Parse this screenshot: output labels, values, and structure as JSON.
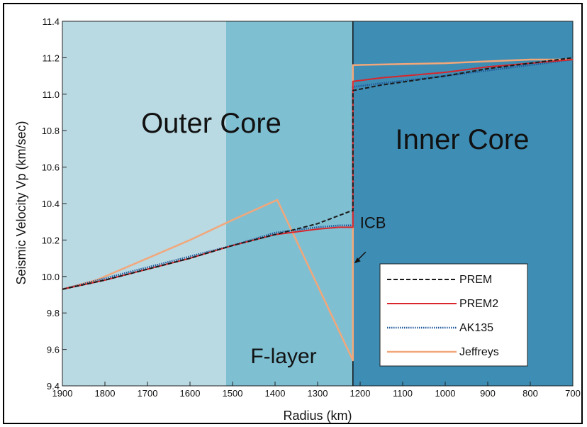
{
  "colors": {
    "outer_core_light": "#b9d9e3",
    "outer_core_mid": "#7fbfd2",
    "inner_core": "#3e8db4",
    "prem": "#1a1a1a",
    "prem2": "#d8262c",
    "ak135": "#1f5a9c",
    "jeffreys": "#f2a77a"
  },
  "chart_data": {
    "type": "line",
    "title": "",
    "xlabel": "Radius  (km)",
    "ylabel": "Seismic Velocity Vp  (km/sec)",
    "xlim": [
      1900,
      700
    ],
    "ylim": [
      9.4,
      11.4
    ],
    "x_reversed": true,
    "xticks": [
      1900,
      1800,
      1700,
      1600,
      1500,
      1400,
      1300,
      1200,
      1100,
      1000,
      900,
      800,
      700
    ],
    "yticks": [
      "9.4",
      "9.6",
      "9.8",
      "10.0",
      "10.2",
      "10.4",
      "10.6",
      "10.8",
      "11.0",
      "11.2",
      "11.4"
    ],
    "grid": false,
    "legend_position": "lower-right",
    "regions": [
      {
        "label": "Outer Core",
        "x_from": 1900,
        "x_to": 1515
      },
      {
        "label": "F-layer",
        "x_from": 1515,
        "x_to": 1217
      },
      {
        "label": "Inner Core",
        "x_from": 1217,
        "x_to": 700
      }
    ],
    "region_labels": {
      "outer_core": "Outer Core",
      "f_layer": "F-layer",
      "inner_core": "Inner Core"
    },
    "annotations": [
      {
        "text": "ICB",
        "x": 1217,
        "y": 10.22
      }
    ],
    "series": [
      {
        "name": "PREM",
        "style": "dashed",
        "x": [
          1900,
          1800,
          1700,
          1600,
          1500,
          1400,
          1300,
          1221,
          1217,
          1217,
          1150,
          1000,
          900,
          800,
          700
        ],
        "y": [
          9.93,
          9.98,
          10.04,
          10.1,
          10.17,
          10.23,
          10.29,
          10.36,
          10.36,
          11.02,
          11.05,
          11.1,
          11.14,
          11.17,
          11.2
        ]
      },
      {
        "name": "PREM2",
        "style": "solid",
        "x": [
          1900,
          1800,
          1700,
          1600,
          1500,
          1400,
          1300,
          1250,
          1220,
          1217,
          1217,
          1150,
          1000,
          900,
          800,
          700
        ],
        "y": [
          9.93,
          9.98,
          10.04,
          10.1,
          10.17,
          10.23,
          10.26,
          10.27,
          10.27,
          10.27,
          11.07,
          11.09,
          11.12,
          11.15,
          11.17,
          11.19
        ]
      },
      {
        "name": "AK135",
        "style": "dotted",
        "x": [
          1900,
          1800,
          1700,
          1600,
          1500,
          1400,
          1300,
          1250,
          1217,
          1217,
          1150,
          1000,
          900,
          800,
          700
        ],
        "y": [
          9.93,
          9.99,
          10.05,
          10.11,
          10.17,
          10.24,
          10.27,
          10.28,
          10.28,
          11.04,
          11.06,
          11.1,
          11.13,
          11.16,
          11.19
        ]
      },
      {
        "name": "Jeffreys",
        "style": "solid",
        "x": [
          1900,
          1820,
          1700,
          1600,
          1500,
          1395,
          1217,
          1217,
          1000,
          900,
          800,
          700
        ],
        "y": [
          9.93,
          9.98,
          10.1,
          10.2,
          10.31,
          10.42,
          9.54,
          11.16,
          11.17,
          11.18,
          11.19,
          11.19
        ]
      }
    ]
  }
}
